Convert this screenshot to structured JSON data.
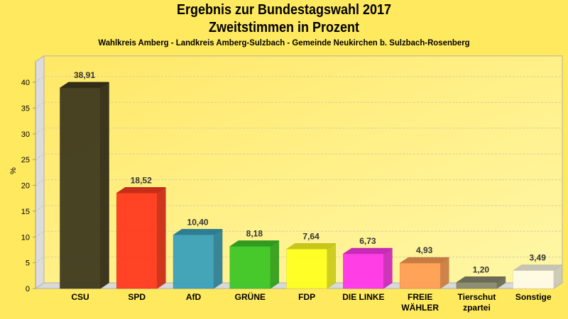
{
  "chart_data": {
    "type": "bar",
    "title": "Ergebnis zur Bundestagswahl 2017",
    "subtitle": "Zweitstimmen in Prozent",
    "subsubtitle": "Wahlkreis Amberg - Landkreis Amberg-Sulzbach - Gemeinde Neukirchen b. Sulzbach-Rosenberg",
    "xlabel": "",
    "ylabel": "%",
    "ylim": [
      0,
      44
    ],
    "yticks": [
      0,
      5,
      10,
      15,
      20,
      25,
      30,
      35,
      40
    ],
    "grid": true,
    "style": "3d",
    "categories": [
      [
        "CSU"
      ],
      [
        "SPD"
      ],
      [
        "AfD"
      ],
      [
        "GRÜNE"
      ],
      [
        "FDP"
      ],
      [
        "DIE LINKE"
      ],
      [
        "FREIE",
        "WÄHLER"
      ],
      [
        "Tierschut",
        "zpartei"
      ],
      [
        "Sonstige"
      ]
    ],
    "values": [
      38.91,
      18.52,
      10.4,
      8.18,
      7.64,
      6.73,
      4.93,
      1.2,
      3.49
    ],
    "value_labels": [
      "38,91",
      "18,52",
      "10,40",
      "8,18",
      "7,64",
      "6,73",
      "4,93",
      "1,20",
      "3,49"
    ],
    "colors": [
      "#3f3a1e",
      "#ff3a1f",
      "#3aa1bb",
      "#3ec726",
      "#ffff21",
      "#ff36ea",
      "#ff9f55",
      "#8a8a6e",
      "#fffbe6"
    ]
  }
}
